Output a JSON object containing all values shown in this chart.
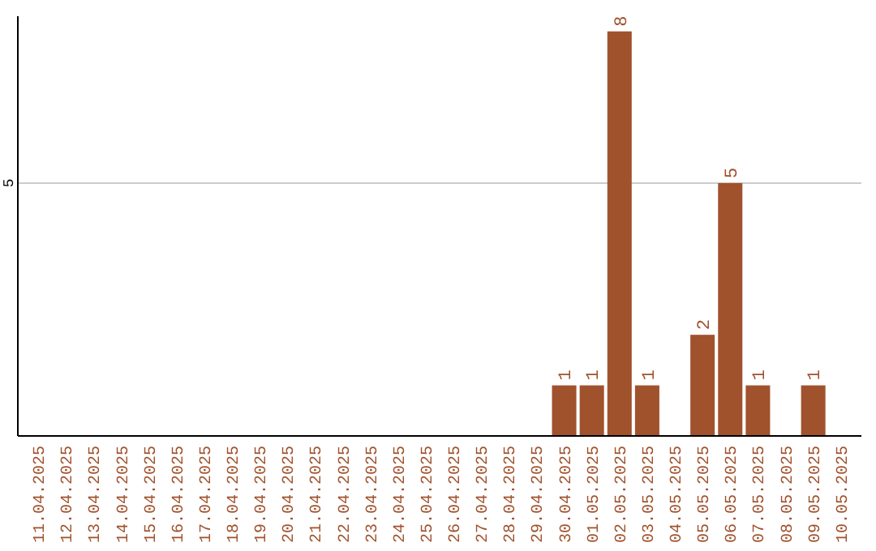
{
  "chart_data": {
    "type": "bar",
    "categories": [
      "11.04.2025",
      "12.04.2025",
      "13.04.2025",
      "14.04.2025",
      "15.04.2025",
      "16.04.2025",
      "17.04.2025",
      "18.04.2025",
      "19.04.2025",
      "20.04.2025",
      "21.04.2025",
      "22.04.2025",
      "23.04.2025",
      "24.04.2025",
      "25.04.2025",
      "26.04.2025",
      "27.04.2025",
      "28.04.2025",
      "29.04.2025",
      "30.04.2025",
      "01.05.2025",
      "02.05.2025",
      "03.05.2025",
      "04.05.2025",
      "05.05.2025",
      "06.05.2025",
      "07.05.2025",
      "08.05.2025",
      "09.05.2025",
      "10.05.2025"
    ],
    "values": [
      null,
      null,
      null,
      null,
      null,
      null,
      null,
      null,
      null,
      null,
      null,
      null,
      null,
      null,
      null,
      null,
      null,
      null,
      null,
      1,
      1,
      8,
      1,
      null,
      2,
      5,
      1,
      null,
      1,
      null
    ],
    "value_labels": [
      null,
      null,
      null,
      null,
      null,
      null,
      null,
      null,
      null,
      null,
      null,
      null,
      null,
      null,
      null,
      null,
      null,
      null,
      null,
      "1",
      "1",
      "8",
      "1",
      null,
      "2",
      "5",
      "1",
      null,
      "1",
      null
    ],
    "color": "#a0522d",
    "ylim": [
      0,
      8.3
    ],
    "ref_lines": [
      {
        "axis": "y",
        "value": 5,
        "label": "5",
        "color": "#cccccc"
      }
    ]
  }
}
